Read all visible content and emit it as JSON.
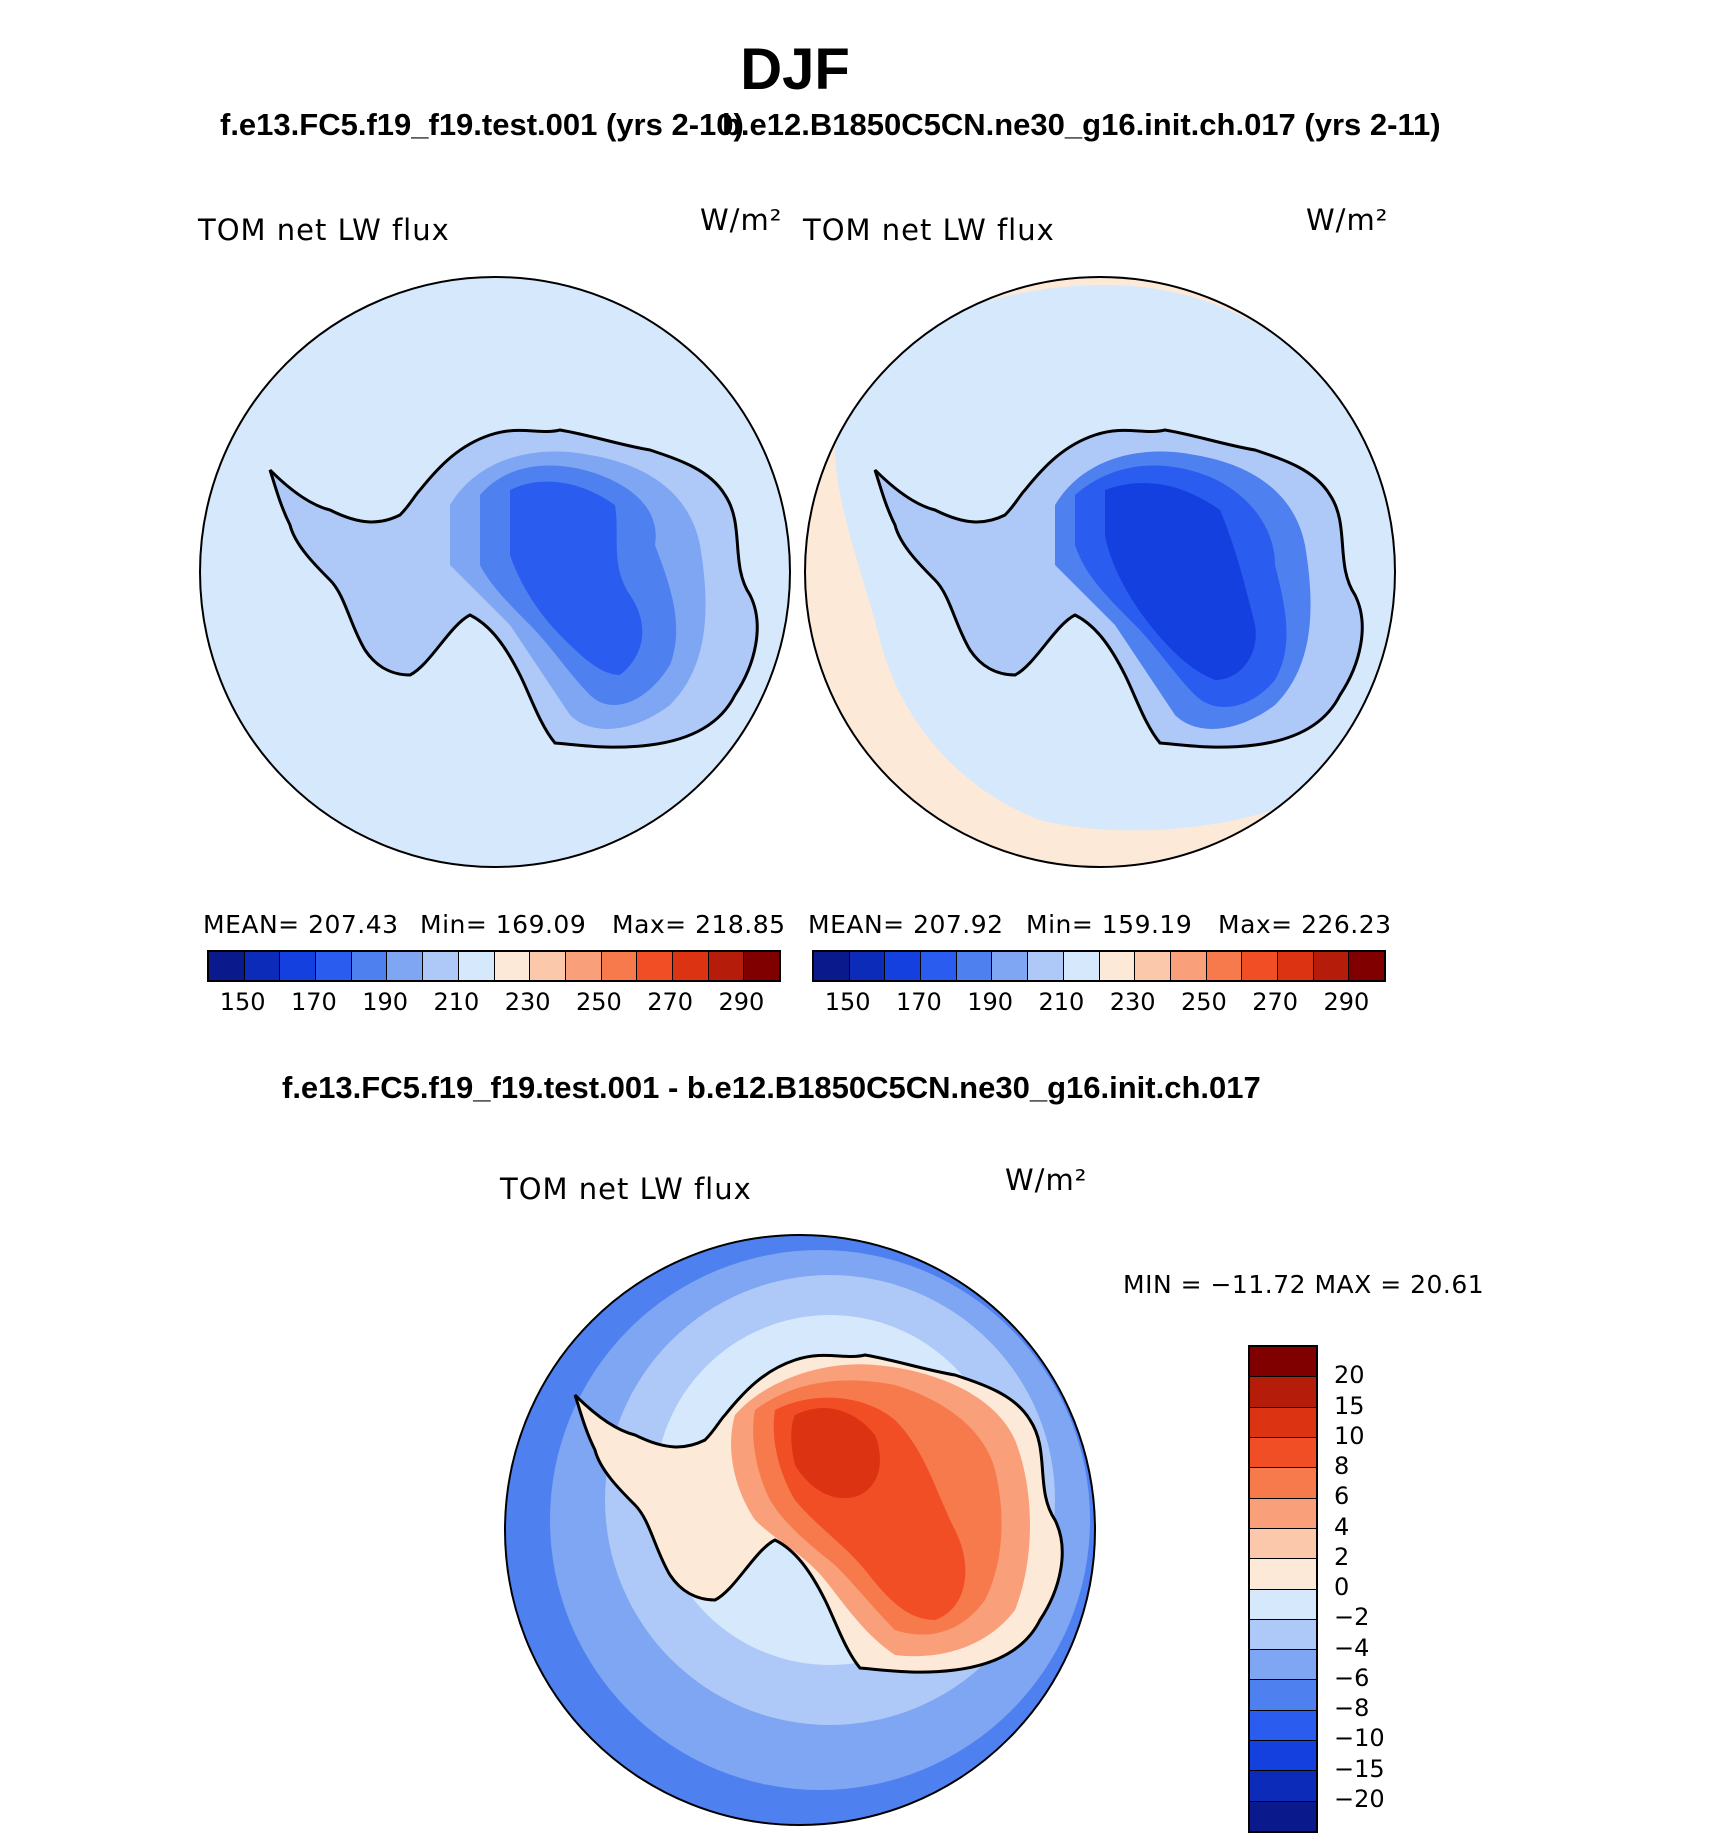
{
  "page": {
    "title": "DJF",
    "subtitle_left": "f.e13.FC5.f19_f19.test.001 (yrs 2-10)",
    "subtitle_right": "b.e12.B1850C5CN.ne30_g16.init.ch.017 (yrs 2-11)",
    "diff_title": "f.e13.FC5.f19_f19.test.001 - b.e12.B1850C5CN.ne30_g16.init.ch.017"
  },
  "colors": {
    "abs_scale": [
      "#0a1a8c",
      "#0b2bb8",
      "#1440e0",
      "#2a5cf0",
      "#4f80f0",
      "#7fa6f2",
      "#aec9f7",
      "#d6e8fc",
      "#fde9d8",
      "#fcc8ac",
      "#f9a07a",
      "#f67a4c",
      "#f24e25",
      "#dc3412",
      "#b51d0a",
      "#800000"
    ],
    "diff_scale": [
      "#800000",
      "#b51d0a",
      "#dc3412",
      "#f24e25",
      "#f67a4c",
      "#f9a07a",
      "#fcc8ac",
      "#fde9d8",
      "#d6e8fc",
      "#aec9f7",
      "#7fa6f2",
      "#4f80f0",
      "#2a5cf0",
      "#1440e0",
      "#0b2bb8",
      "#0a1a8c"
    ]
  },
  "panels": {
    "left": {
      "variable": "TOM net LW flux",
      "units": "W/m²",
      "mean_label": "MEAN=  207.43",
      "min_label": "Min=  169.09",
      "max_label": "Max=  218.85",
      "ticks": [
        "150",
        "170",
        "190",
        "210",
        "230",
        "250",
        "270",
        "290"
      ]
    },
    "right": {
      "variable": "TOM net LW flux",
      "units": "W/m²",
      "mean_label": "MEAN=  207.92",
      "min_label": "Min=  159.19",
      "max_label": "Max=  226.23",
      "ticks": [
        "150",
        "170",
        "190",
        "210",
        "230",
        "250",
        "270",
        "290"
      ]
    },
    "diff": {
      "variable": "TOM net LW flux",
      "units": "W/m²",
      "minmax_label": "MIN = −11.72  MAX =   20.61",
      "ticks": [
        "20",
        "15",
        "10",
        "8",
        "6",
        "4",
        "2",
        "0",
        "−2",
        "−4",
        "−6",
        "−8",
        "−10",
        "−15",
        "−20"
      ]
    }
  }
}
